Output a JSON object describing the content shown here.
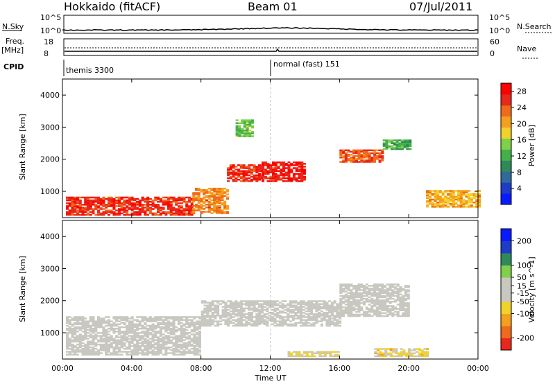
{
  "header": {
    "left": "Hokkaido (fitACF)",
    "center": "Beam 01",
    "right": "07/Jul/2011"
  },
  "strip_labels": {
    "nsky": "N.Sky",
    "nsearch": "N.Search",
    "freq_top": "Freq.",
    "freq_unit": "[MHz]",
    "nave": "Nave",
    "cpid": "CPID",
    "nsky_ticks": [
      "10^5",
      "10^0"
    ],
    "nsearch_ticks": [
      "10^5",
      "10^0"
    ],
    "freq_ticks": [
      "18",
      "8"
    ],
    "nave_ticks": [
      "60",
      "0"
    ]
  },
  "cpid_modes": [
    "themis 3300",
    "normal (fast) 151"
  ],
  "colors": {
    "power_scale": [
      "#0a1aff",
      "#1e3cc8",
      "#2f6a9a",
      "#2e8a5a",
      "#44b04a",
      "#7fd04a",
      "#f2d22a",
      "#f4a01e",
      "#f06a1c",
      "#e8281a",
      "#ff0000"
    ],
    "velocity_scale": [
      "#e8281a",
      "#f06a1c",
      "#f4a01e",
      "#f2d22a",
      "#c8c8c0",
      "#c8c8c0",
      "#7fd04a",
      "#2e8a5a",
      "#1e3cc8",
      "#0a1aff"
    ]
  },
  "chart_data": [
    {
      "type": "heatmap",
      "panel": "power",
      "title": "",
      "xlabel": "",
      "ylabel": "Slant Range [km]",
      "xlim": [
        "00:00",
        "24:00"
      ],
      "ylim": [
        180,
        4500
      ],
      "x_ticks": [
        "00:00",
        "04:00",
        "08:00",
        "12:00",
        "16:00",
        "20:00",
        "00:00"
      ],
      "y_ticks": [
        1000,
        2000,
        3000,
        4000
      ],
      "colorbar": {
        "label": "Power [dB]",
        "ticks": [
          28,
          24,
          20,
          16,
          12,
          8,
          4
        ],
        "range": [
          0,
          30
        ]
      },
      "regions": [
        {
          "t": [
            0.2,
            7.5
          ],
          "r": [
            250,
            800
          ],
          "value": 26
        },
        {
          "t": [
            7.5,
            9.5
          ],
          "r": [
            300,
            1100
          ],
          "value": 22
        },
        {
          "t": [
            9.5,
            11.5
          ],
          "r": [
            1300,
            1800
          ],
          "value": 26
        },
        {
          "t": [
            11.5,
            14
          ],
          "r": [
            1300,
            1900
          ],
          "value": 27
        },
        {
          "t": [
            16,
            18.5
          ],
          "r": [
            1900,
            2300
          ],
          "value": 24
        },
        {
          "t": [
            18.5,
            20
          ],
          "r": [
            2300,
            2600
          ],
          "value": 12
        },
        {
          "t": [
            21,
            24
          ],
          "r": [
            500,
            1000
          ],
          "value": 20
        },
        {
          "t": [
            10,
            11
          ],
          "r": [
            2700,
            3200
          ],
          "value": 14
        }
      ]
    },
    {
      "type": "heatmap",
      "panel": "velocity",
      "title": "",
      "xlabel": "Time UT",
      "ylabel": "Slant Range [km]",
      "xlim": [
        "00:00",
        "24:00"
      ],
      "ylim": [
        180,
        4500
      ],
      "x_ticks": [
        "00:00",
        "04:00",
        "08:00",
        "12:00",
        "16:00",
        "20:00",
        "00:00"
      ],
      "y_ticks": [
        1000,
        2000,
        3000,
        4000
      ],
      "colorbar": {
        "label": "Velocity [m s^-1]",
        "ticks": [
          200,
          100,
          50,
          15,
          -15,
          -50,
          -100,
          -200
        ],
        "range": [
          -250,
          250
        ]
      },
      "regions": [
        {
          "t": [
            0.2,
            8
          ],
          "r": [
            300,
            1500
          ],
          "value": 0
        },
        {
          "t": [
            8,
            16
          ],
          "r": [
            1200,
            2000
          ],
          "value": 0
        },
        {
          "t": [
            16,
            20
          ],
          "r": [
            1500,
            2500
          ],
          "value": 0
        },
        {
          "t": [
            18,
            21
          ],
          "r": [
            250,
            500
          ],
          "value": -60
        },
        {
          "t": [
            13,
            16
          ],
          "r": [
            250,
            400
          ],
          "value": -40
        }
      ]
    }
  ]
}
